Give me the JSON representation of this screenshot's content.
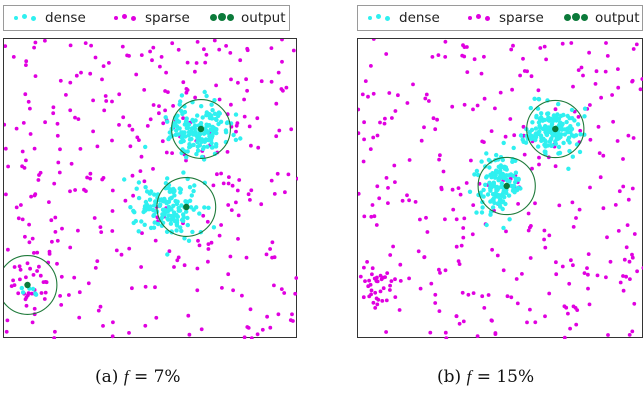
{
  "legend": {
    "dense": "dense",
    "sparse": "sparse",
    "output": "output"
  },
  "colors": {
    "dense": "#2ff0f0",
    "sparse": "#e000e0",
    "output": "#0b7a3a",
    "circle": "#1f7a3a"
  },
  "chart_data": [
    {
      "type": "scatter",
      "caption_prefix": "(a)",
      "caption_var": "f",
      "caption_eq": " = ",
      "caption_value": "7%",
      "f_percent": 7,
      "xlim": [
        0,
        1
      ],
      "ylim": [
        0,
        1
      ],
      "series": [
        {
          "name": "dense",
          "clusters": [
            {
              "cx": 0.66,
              "cy": 0.7,
              "sx": 0.05,
              "sy": 0.045,
              "n": 170
            },
            {
              "cx": 0.55,
              "cy": 0.44,
              "sx": 0.055,
              "sy": 0.05,
              "n": 150
            },
            {
              "cx": 0.09,
              "cy": 0.18,
              "sx": 0.015,
              "sy": 0.02,
              "n": 6
            }
          ]
        },
        {
          "name": "sparse",
          "uniform_count": 330,
          "clusters": [
            {
              "cx": 0.08,
              "cy": 0.18,
              "sx": 0.04,
              "sy": 0.05,
              "n": 30
            }
          ]
        },
        {
          "name": "output",
          "points": [
            {
              "x": 0.67,
              "y": 0.7,
              "r": 0.1
            },
            {
              "x": 0.62,
              "y": 0.44,
              "r": 0.1
            },
            {
              "x": 0.08,
              "y": 0.18,
              "r": 0.1
            }
          ]
        }
      ]
    },
    {
      "type": "scatter",
      "caption_prefix": "(b)",
      "caption_var": "f",
      "caption_eq": " = ",
      "caption_value": "15%",
      "f_percent": 15,
      "xlim": [
        0,
        1
      ],
      "ylim": [
        0,
        1
      ],
      "series": [
        {
          "name": "dense",
          "clusters": [
            {
              "cx": 0.68,
              "cy": 0.7,
              "sx": 0.045,
              "sy": 0.04,
              "n": 160
            },
            {
              "cx": 0.49,
              "cy": 0.51,
              "sx": 0.04,
              "sy": 0.05,
              "n": 140
            }
          ]
        },
        {
          "name": "sparse",
          "uniform_count": 300,
          "clusters": [
            {
              "cx": 0.08,
              "cy": 0.18,
              "sx": 0.04,
              "sy": 0.04,
              "n": 30
            }
          ]
        },
        {
          "name": "output",
          "points": [
            {
              "x": 0.69,
              "y": 0.7,
              "r": 0.1
            },
            {
              "x": 0.52,
              "y": 0.51,
              "r": 0.1
            }
          ]
        }
      ]
    }
  ]
}
